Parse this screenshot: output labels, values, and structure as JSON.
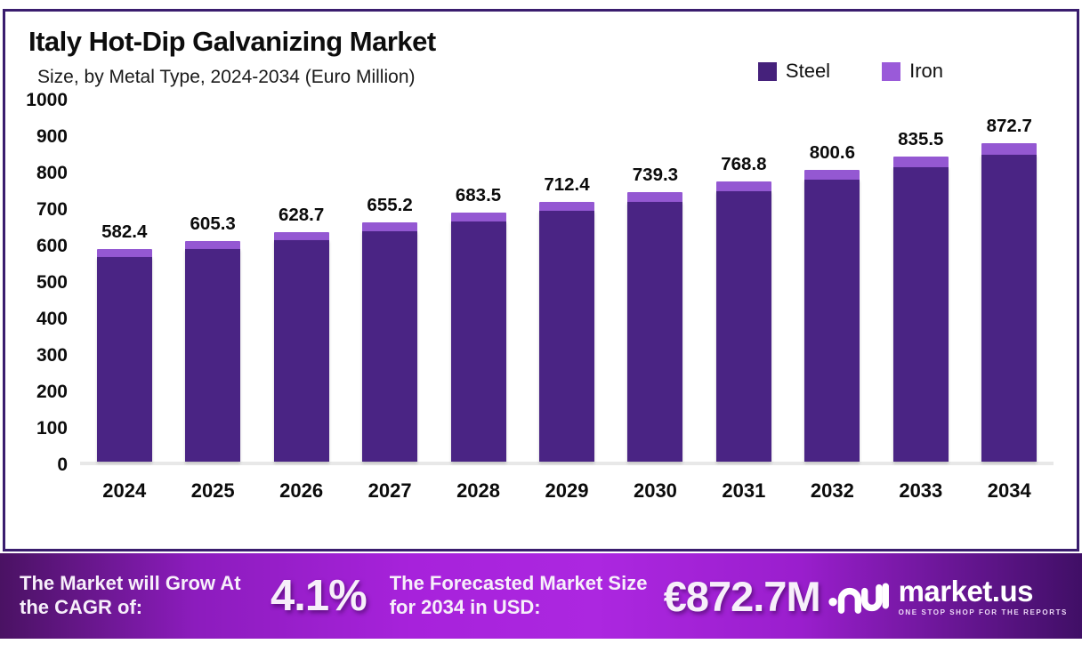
{
  "header": {
    "title": "Italy Hot-Dip Galvanizing Market",
    "subtitle": "Size, by Metal Type, 2024-2034 (Euro Million)"
  },
  "legend": [
    {
      "label": "Steel",
      "color": "#45217B"
    },
    {
      "label": "Iron",
      "color": "#9A5AD9"
    }
  ],
  "chart_data": {
    "type": "bar",
    "stacked": true,
    "title": "Italy Hot-Dip Galvanizing Market",
    "subtitle": "Size, by Metal Type, 2024-2034 (Euro Million)",
    "xlabel": "",
    "ylabel": "Euro Million",
    "ylim": [
      0,
      1000
    ],
    "yticks": [
      0,
      100,
      200,
      300,
      400,
      500,
      600,
      700,
      800,
      900,
      1000
    ],
    "grid": false,
    "legend_position": "top-right",
    "categories": [
      "2024",
      "2025",
      "2026",
      "2027",
      "2028",
      "2029",
      "2030",
      "2031",
      "2032",
      "2033",
      "2034"
    ],
    "totals": [
      582.4,
      605.3,
      628.7,
      655.2,
      683.5,
      712.4,
      739.3,
      768.8,
      800.6,
      835.5,
      872.7
    ],
    "series": [
      {
        "name": "Steel",
        "color": "#4A2484",
        "values": [
          562.0,
          584.0,
          606.7,
          632.3,
          659.6,
          687.5,
          713.4,
          741.9,
          772.6,
          806.3,
          842.2
        ]
      },
      {
        "name": "Iron",
        "color": "#9458D2",
        "values": [
          20.4,
          21.3,
          22.0,
          22.9,
          23.9,
          24.9,
          25.9,
          26.9,
          28.0,
          29.2,
          30.5
        ]
      }
    ]
  },
  "banner": {
    "cagr_label": "The Market will Grow At the CAGR of:",
    "cagr_value": "4.1%",
    "forecast_label": "The Forecasted Market Size for 2034 in USD:",
    "forecast_value": "€872.7M",
    "brand": {
      "name": "market.us",
      "tagline": "ONE STOP SHOP FOR THE REPORTS"
    }
  }
}
